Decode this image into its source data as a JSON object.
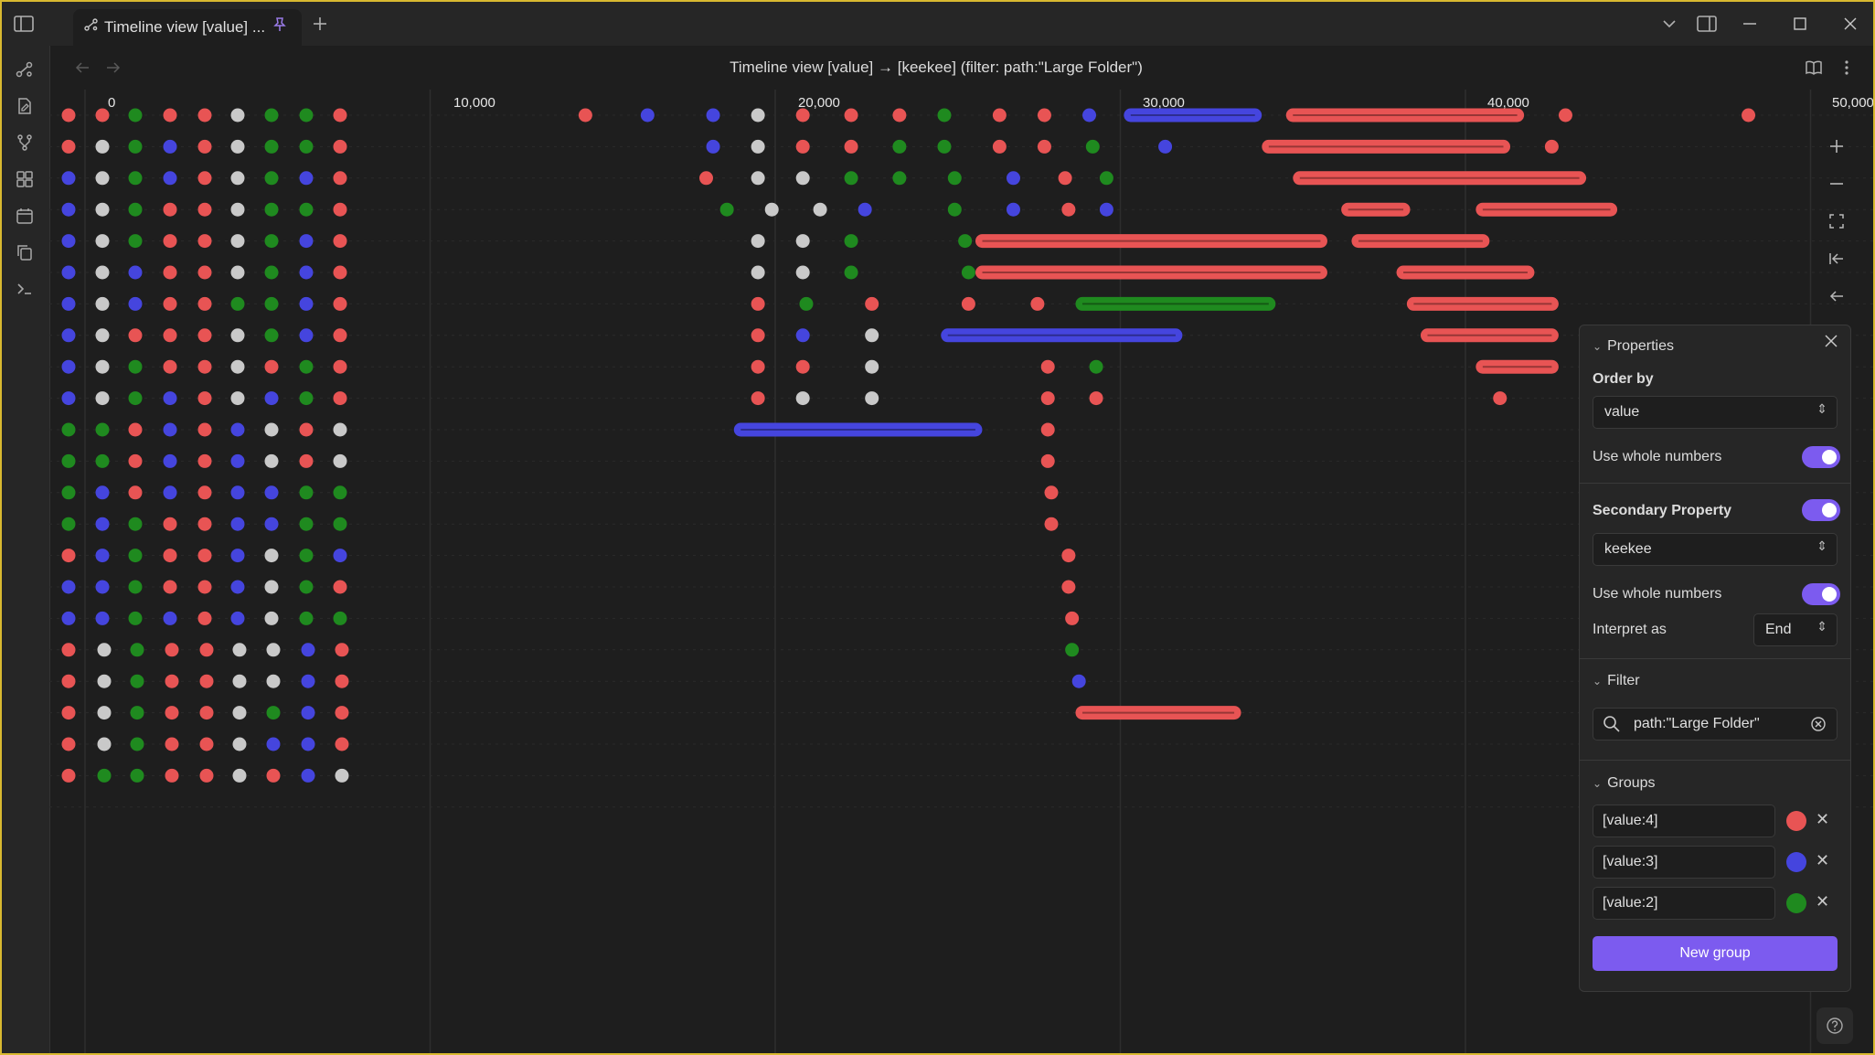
{
  "window": {
    "tab_title": "Timeline view [value] ...",
    "view_title": "Timeline view [value] → [keekee] (filter: path:\"Large Folder\")"
  },
  "icons": {
    "tab": "graph-icon",
    "pin": "pin-icon",
    "new_tab": "plus-icon",
    "menu": "chevron-down-icon",
    "split": "split-view-icon",
    "minimize": "minimize-icon",
    "maximize": "maximize-icon",
    "close": "close-icon",
    "sidebar_toggle": "sidebar-icon",
    "ribbon": [
      "graph-icon",
      "new-note-icon",
      "branch-icon",
      "grid-icon",
      "calendar-icon",
      "copy-icon",
      "terminal-icon"
    ],
    "back": "arrow-left-icon",
    "forward": "arrow-right-icon",
    "reading": "book-icon",
    "more": "more-vertical-icon",
    "controls": [
      "zoom-in-icon",
      "zoom-out-icon",
      "fullscreen-icon",
      "fit-start-icon",
      "arrow-back-icon"
    ]
  },
  "axis": {
    "ticks": [
      "0",
      "10,000",
      "20,000",
      "30,000",
      "40,000",
      "50,000"
    ]
  },
  "colors": {
    "red": "#e85454",
    "blue": "#4545de",
    "green": "#1f8a1f",
    "gray": "#c9c9c9",
    "accent": "#7c5bef"
  },
  "timeline": {
    "left_grid": [
      [
        "R",
        "R",
        "G",
        "R",
        "R",
        "W",
        "G",
        "G",
        "R"
      ],
      [
        "R",
        "W",
        "G",
        "B",
        "R",
        "W",
        "G",
        "G",
        "R"
      ],
      [
        "B",
        "W",
        "G",
        "B",
        "R",
        "W",
        "G",
        "B",
        "R"
      ],
      [
        "B",
        "W",
        "G",
        "R",
        "R",
        "W",
        "G",
        "G",
        "R"
      ],
      [
        "B",
        "W",
        "G",
        "R",
        "R",
        "W",
        "G",
        "B",
        "R"
      ],
      [
        "B",
        "W",
        "B",
        "R",
        "R",
        "W",
        "G",
        "B",
        "R"
      ],
      [
        "B",
        "W",
        "B",
        "R",
        "R",
        "G",
        "G",
        "B",
        "R"
      ],
      [
        "B",
        "W",
        "R",
        "R",
        "R",
        "W",
        "G",
        "B",
        "R"
      ],
      [
        "B",
        "W",
        "G",
        "R",
        "R",
        "W",
        "R",
        "G",
        "R"
      ],
      [
        "B",
        "W",
        "G",
        "B",
        "R",
        "W",
        "B",
        "G",
        "R"
      ],
      [
        "G",
        "G",
        "R",
        "B",
        "R",
        "B",
        "W",
        "R",
        "W"
      ],
      [
        "G",
        "G",
        "R",
        "B",
        "R",
        "B",
        "W",
        "R",
        "W"
      ],
      [
        "G",
        "B",
        "R",
        "B",
        "R",
        "B",
        "B",
        "G",
        "G"
      ],
      [
        "G",
        "B",
        "G",
        "R",
        "R",
        "B",
        "B",
        "G",
        "G"
      ],
      [
        "R",
        "B",
        "G",
        "R",
        "R",
        "B",
        "W",
        "G",
        "B"
      ],
      [
        "B",
        "B",
        "G",
        "R",
        "R",
        "B",
        "W",
        "G",
        "R"
      ],
      [
        "B",
        "B",
        "G",
        "B",
        "R",
        "B",
        "W",
        "G",
        "G"
      ],
      [
        "R",
        "W",
        "G",
        "R",
        "R",
        "W",
        "W",
        "B",
        "R"
      ],
      [
        "R",
        "W",
        "G",
        "R",
        "R",
        "W",
        "W",
        "B",
        "R"
      ],
      [
        "R",
        "W",
        "G",
        "R",
        "R",
        "W",
        "G",
        "B",
        "R"
      ],
      [
        "R",
        "W",
        "G",
        "R",
        "R",
        "W",
        "B",
        "B",
        "R"
      ],
      [
        "R",
        "G",
        "G",
        "R",
        "R",
        "W",
        "R",
        "B",
        "W"
      ]
    ],
    "points": [
      [
        0,
        14500,
        "R"
      ],
      [
        0,
        16300,
        "B"
      ],
      [
        0,
        18200,
        "B"
      ],
      [
        0,
        19500,
        "W"
      ],
      [
        0,
        20800,
        "R"
      ],
      [
        0,
        22200,
        "R"
      ],
      [
        0,
        23600,
        "R"
      ],
      [
        0,
        24900,
        "G"
      ],
      [
        0,
        26500,
        "R"
      ],
      [
        0,
        27800,
        "R"
      ],
      [
        0,
        29100,
        "B"
      ],
      [
        0,
        31100,
        "R"
      ],
      [
        0,
        42900,
        "R"
      ],
      [
        0,
        48200,
        "R"
      ],
      [
        1,
        18200,
        "B"
      ],
      [
        1,
        19500,
        "W"
      ],
      [
        1,
        20800,
        "R"
      ],
      [
        1,
        22200,
        "R"
      ],
      [
        1,
        23600,
        "G"
      ],
      [
        1,
        24900,
        "G"
      ],
      [
        1,
        26500,
        "R"
      ],
      [
        1,
        27800,
        "R"
      ],
      [
        1,
        29200,
        "G"
      ],
      [
        1,
        31300,
        "B"
      ],
      [
        1,
        42500,
        "R"
      ],
      [
        2,
        18000,
        "R"
      ],
      [
        2,
        19500,
        "W"
      ],
      [
        2,
        20800,
        "W"
      ],
      [
        2,
        22200,
        "G"
      ],
      [
        2,
        23600,
        "G"
      ],
      [
        2,
        25200,
        "G"
      ],
      [
        2,
        26900,
        "B"
      ],
      [
        2,
        28400,
        "R"
      ],
      [
        2,
        29600,
        "G"
      ],
      [
        3,
        18600,
        "G"
      ],
      [
        3,
        19900,
        "W"
      ],
      [
        3,
        21300,
        "W"
      ],
      [
        3,
        22600,
        "B"
      ],
      [
        3,
        25200,
        "G"
      ],
      [
        3,
        26900,
        "B"
      ],
      [
        3,
        28500,
        "R"
      ],
      [
        3,
        29600,
        "B"
      ],
      [
        4,
        19500,
        "W"
      ],
      [
        4,
        20800,
        "W"
      ],
      [
        4,
        22200,
        "G"
      ],
      [
        4,
        25500,
        "G"
      ],
      [
        5,
        19500,
        "W"
      ],
      [
        5,
        20800,
        "W"
      ],
      [
        5,
        22200,
        "G"
      ],
      [
        5,
        25600,
        "G"
      ],
      [
        6,
        19500,
        "R"
      ],
      [
        6,
        20900,
        "G"
      ],
      [
        6,
        22800,
        "R"
      ],
      [
        6,
        25600,
        "R"
      ],
      [
        6,
        27600,
        "R"
      ],
      [
        7,
        19500,
        "R"
      ],
      [
        7,
        20800,
        "B"
      ],
      [
        7,
        22800,
        "W"
      ],
      [
        8,
        19500,
        "R"
      ],
      [
        8,
        20800,
        "R"
      ],
      [
        8,
        22800,
        "W"
      ],
      [
        8,
        27900,
        "R"
      ],
      [
        8,
        29300,
        "G"
      ],
      [
        9,
        19500,
        "R"
      ],
      [
        9,
        20800,
        "W"
      ],
      [
        9,
        22800,
        "W"
      ],
      [
        9,
        27900,
        "R"
      ],
      [
        9,
        29300,
        "R"
      ],
      [
        10,
        27900,
        "R"
      ],
      [
        11,
        27900,
        "R"
      ],
      [
        12,
        28000,
        "R"
      ],
      [
        13,
        28000,
        "R"
      ],
      [
        14,
        28500,
        "R"
      ],
      [
        15,
        28500,
        "R"
      ],
      [
        16,
        28600,
        "R"
      ],
      [
        17,
        28600,
        "G"
      ],
      [
        18,
        28800,
        "B"
      ]
    ],
    "ranges": [
      [
        0,
        30300,
        33900,
        "B"
      ],
      [
        0,
        35000,
        41500,
        "R"
      ],
      [
        1,
        34300,
        41100,
        "R"
      ],
      [
        2,
        35200,
        43300,
        "R"
      ],
      [
        3,
        36600,
        38200,
        "R"
      ],
      [
        3,
        40500,
        44200,
        "R"
      ],
      [
        4,
        26000,
        35800,
        "R"
      ],
      [
        4,
        36900,
        40500,
        "R"
      ],
      [
        5,
        26000,
        35800,
        "R"
      ],
      [
        5,
        38200,
        41800,
        "R"
      ],
      [
        6,
        28900,
        34300,
        "G"
      ],
      [
        6,
        38500,
        42500,
        "R"
      ],
      [
        7,
        25000,
        31600,
        "B"
      ],
      [
        7,
        38900,
        42500,
        "R"
      ],
      [
        8,
        40500,
        42500,
        "R"
      ],
      [
        10,
        19000,
        25800,
        "B"
      ],
      [
        19,
        28900,
        33300,
        "R"
      ]
    ],
    "edge_points": [
      [
        9,
        41000,
        "R"
      ]
    ]
  },
  "properties": {
    "header": "Properties",
    "order_by_label": "Order by",
    "order_by_value": "value",
    "whole_numbers_label": "Use whole numbers",
    "secondary_label": "Secondary Property",
    "secondary_value": "keekee",
    "whole_numbers_label_2": "Use whole numbers",
    "interpret_label": "Interpret as",
    "interpret_value": "End",
    "filter_header": "Filter",
    "filter_value": "path:\"Large Folder\"",
    "groups_header": "Groups",
    "groups": [
      {
        "label": "[value:4]",
        "color": "#e85454"
      },
      {
        "label": "[value:3]",
        "color": "#4545de"
      },
      {
        "label": "[value:2]",
        "color": "#1f8a1f"
      }
    ],
    "new_group": "New group"
  }
}
